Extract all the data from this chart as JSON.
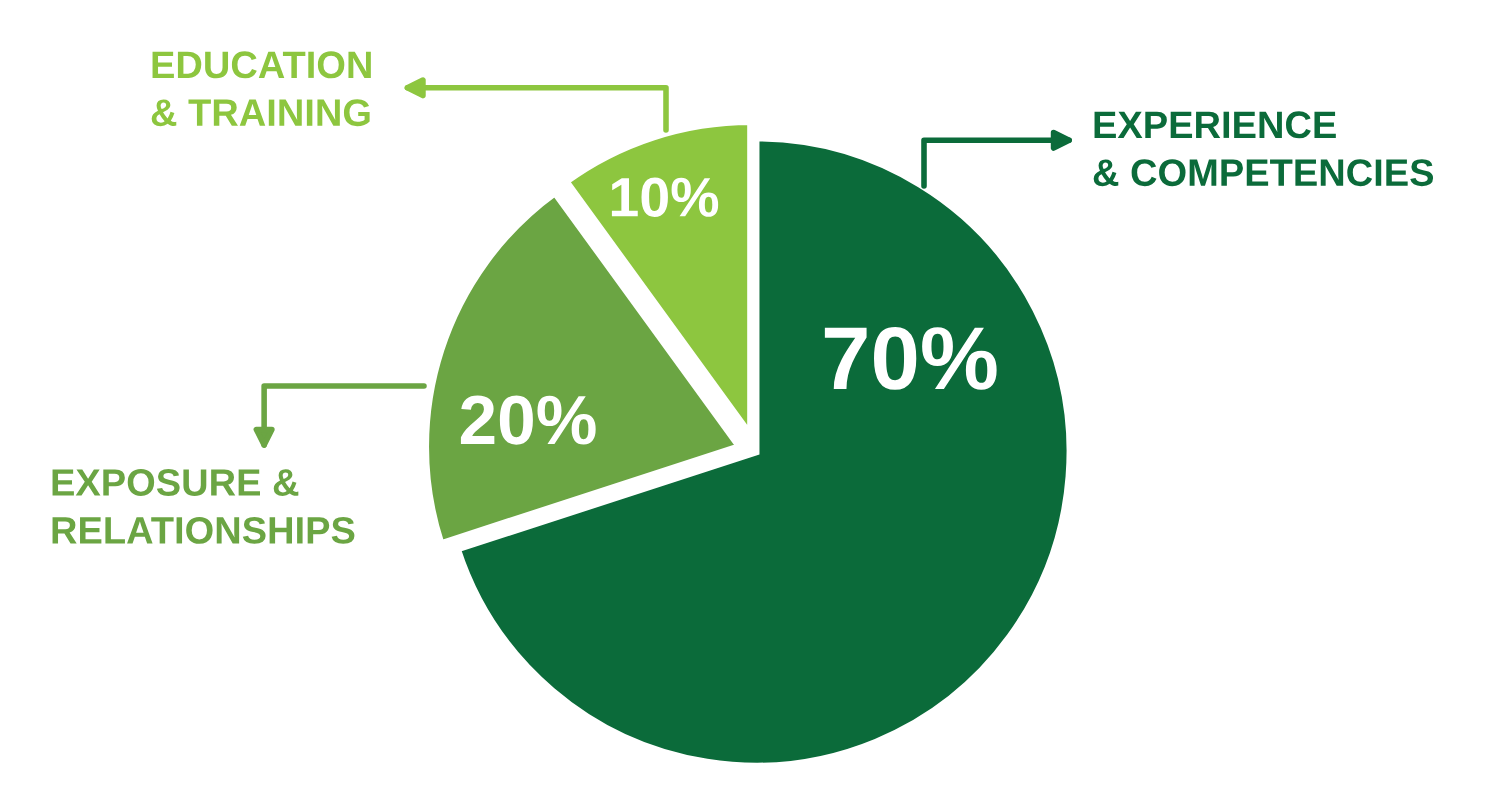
{
  "chart_data": {
    "type": "pie",
    "categories": [
      "EXPERIENCE\n& COMPETENCIES",
      "EXPOSURE &\nRELATIONSHIPS",
      "EDUCATION\n& TRAINING"
    ],
    "values": [
      70,
      20,
      10
    ],
    "colors": [
      "#0b6b3a",
      "#6ba543",
      "#8dc63f"
    ],
    "value_labels": [
      "70%",
      "20%",
      "10%"
    ]
  }
}
